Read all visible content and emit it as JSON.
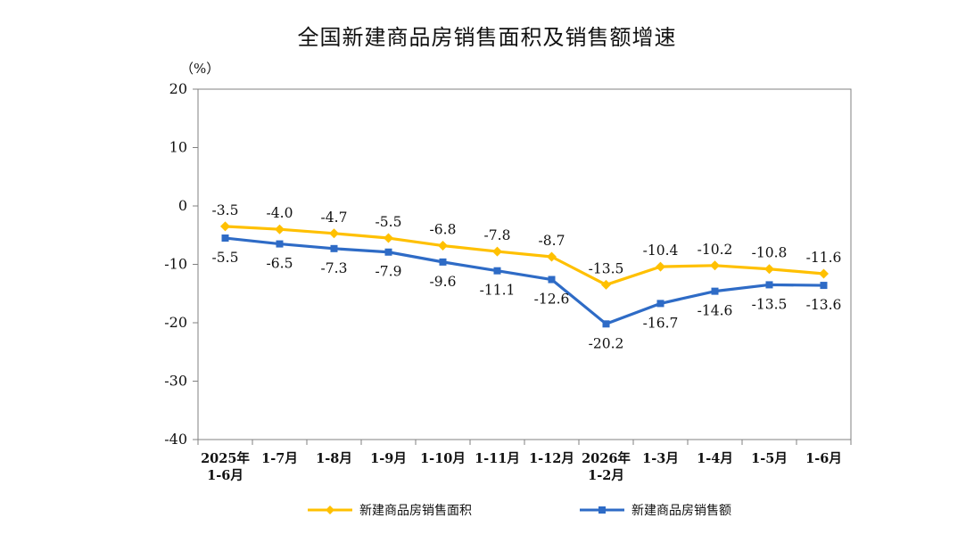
{
  "chart_data": {
    "type": "line",
    "title": "全国新建商品房销售面积及销售额增速",
    "unit_label": "（%）",
    "ylim": [
      -40,
      20
    ],
    "yticks": [
      "20",
      "10",
      "0",
      "-10",
      "-20",
      "-30",
      "-40"
    ],
    "ytick_values": [
      20,
      10,
      0,
      -10,
      -20,
      -30,
      -40
    ],
    "categories": [
      [
        "2025年",
        "1-6月"
      ],
      [
        "1-7月"
      ],
      [
        "1-8月"
      ],
      [
        "1-9月"
      ],
      [
        "1-10月"
      ],
      [
        "1-11月"
      ],
      [
        "1-12月"
      ],
      [
        "2026年",
        "1-2月"
      ],
      [
        "1-3月"
      ],
      [
        "1-4月"
      ],
      [
        "1-5月"
      ],
      [
        "1-6月"
      ]
    ],
    "series": [
      {
        "name": "新建商品房销售面积",
        "color": "#FFC000",
        "marker": "diamond",
        "values": [
          -3.5,
          -4.0,
          -4.7,
          -5.5,
          -6.8,
          -7.8,
          -8.7,
          -13.5,
          -10.4,
          -10.2,
          -10.8,
          -11.6
        ],
        "labels": [
          "-3.5",
          "-4.0",
          "-4.7",
          "-5.5",
          "-6.8",
          "-7.8",
          "-8.7",
          "-13.5",
          "-10.4",
          "-10.2",
          "-10.8",
          "-11.6"
        ],
        "label_position": "above"
      },
      {
        "name": "新建商品房销售额",
        "color": "#2E6BC6",
        "marker": "square",
        "values": [
          -5.5,
          -6.5,
          -7.3,
          -7.9,
          -9.6,
          -11.1,
          -12.6,
          -20.2,
          -16.7,
          -14.6,
          -13.5,
          -13.6
        ],
        "labels": [
          "-5.5",
          "-6.5",
          "-7.3",
          "-7.9",
          "-9.6",
          "-11.1",
          "-12.6",
          "-20.2",
          "-16.7",
          "-14.6",
          "-13.5",
          "-13.6"
        ],
        "label_position": "below"
      }
    ],
    "grid": false,
    "legend_position": "bottom"
  }
}
